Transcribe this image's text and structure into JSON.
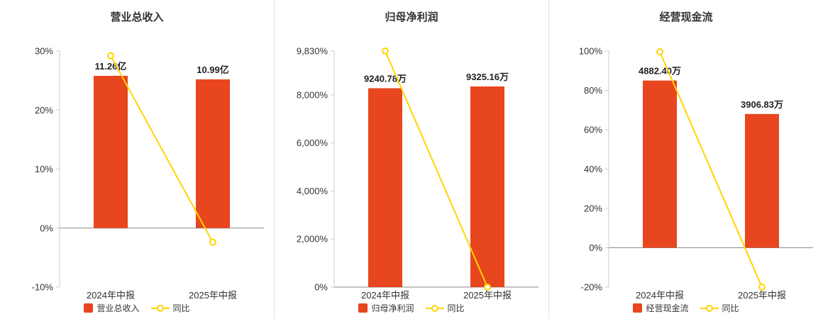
{
  "colors": {
    "bar": "#e8461e",
    "line": "#ffd400",
    "axis_line": "#cccccc",
    "zero_line": "#8a8a8a",
    "divider": "#e3e3e3",
    "text": "#333333"
  },
  "chart_data": [
    {
      "type": "bar",
      "title": "营业总收入",
      "categories": [
        "2024年中报",
        "2025年中报"
      ],
      "legend_position": "bottom",
      "grid": false,
      "y_axis": {
        "min": -10,
        "max": 30,
        "ticks": [
          -10,
          0,
          10,
          20,
          30
        ],
        "tick_labels": [
          "-10%",
          "0%",
          "10%",
          "20%",
          "30%"
        ]
      },
      "series": [
        {
          "name": "营业总收入",
          "kind": "bar",
          "unit": "亿",
          "values": [
            11.26,
            10.99
          ],
          "labels": [
            "11.26亿",
            "10.99亿"
          ],
          "bar_tops_on_pct_axis": [
            25.8,
            25.2
          ]
        },
        {
          "name": "同比",
          "kind": "line",
          "values_pct": [
            29.2,
            -2.4
          ]
        }
      ]
    },
    {
      "type": "bar",
      "title": "归母净利润",
      "categories": [
        "2024年中报",
        "2025年中报"
      ],
      "legend_position": "bottom",
      "grid": false,
      "y_axis": {
        "min": 0,
        "max": 9830,
        "ticks": [
          0,
          2000,
          4000,
          6000,
          8000,
          9830
        ],
        "tick_labels": [
          "0%",
          "2,000%",
          "4,000%",
          "6,000%",
          "8,000%",
          "9,830%"
        ]
      },
      "series": [
        {
          "name": "归母净利润",
          "kind": "bar",
          "unit": "万",
          "values": [
            9240.78,
            9325.16
          ],
          "labels": [
            "9240.78万",
            "9325.16万"
          ],
          "bar_tops_on_pct_axis": [
            8281,
            8356
          ]
        },
        {
          "name": "同比",
          "kind": "line",
          "values_pct": [
            9830,
            0.91
          ]
        }
      ]
    },
    {
      "type": "bar",
      "title": "经营现金流",
      "categories": [
        "2024年中报",
        "2025年中报"
      ],
      "legend_position": "bottom",
      "grid": false,
      "y_axis": {
        "min": -20,
        "max": 100,
        "ticks": [
          -20,
          0,
          20,
          40,
          60,
          80,
          100
        ],
        "tick_labels": [
          "-20%",
          "0%",
          "20%",
          "40%",
          "60%",
          "80%",
          "100%"
        ]
      },
      "series": [
        {
          "name": "经营现金流",
          "kind": "bar",
          "unit": "万",
          "values": [
            4882.4,
            3906.83
          ],
          "labels": [
            "4882.40万",
            "3906.83万"
          ],
          "bar_tops_on_pct_axis": [
            85.0,
            68.0
          ]
        },
        {
          "name": "同比",
          "kind": "line",
          "values_pct": [
            99.6,
            -20.0
          ]
        }
      ]
    }
  ]
}
